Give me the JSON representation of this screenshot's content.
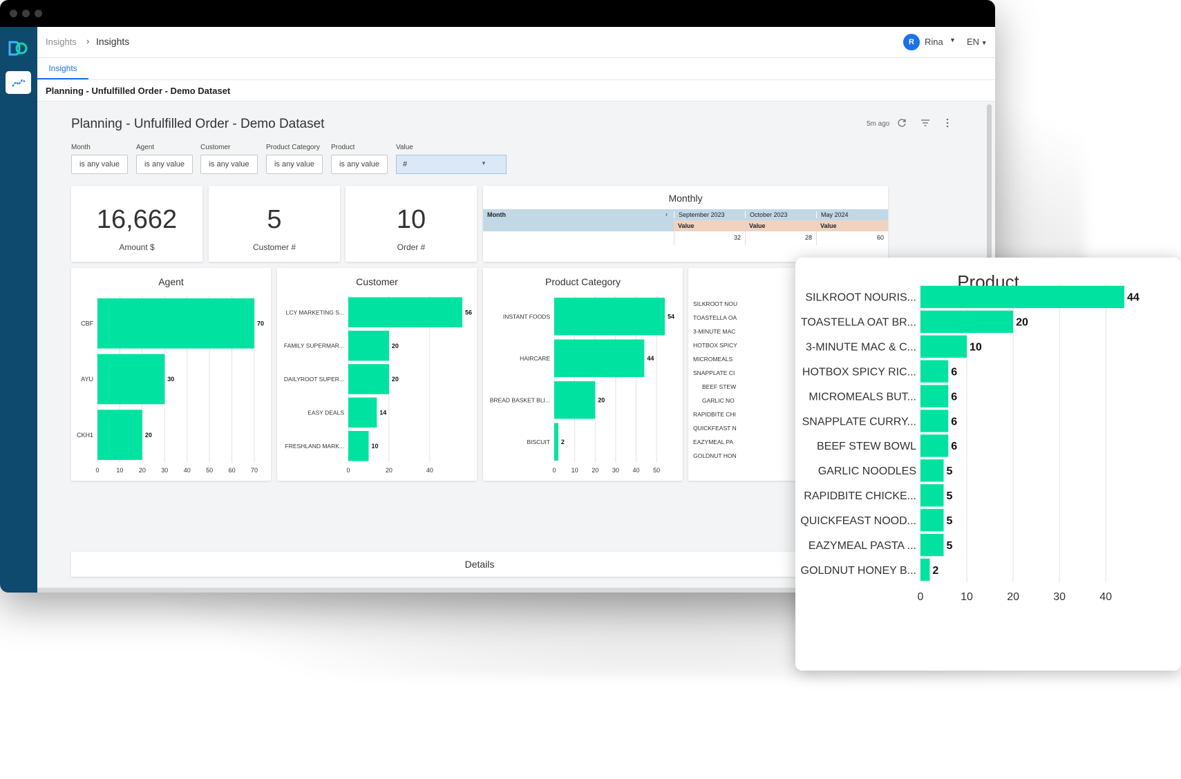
{
  "breadcrumb": {
    "root": "Insights",
    "separator": "›",
    "current": "Insights"
  },
  "user": {
    "initial": "R",
    "name": "Rina",
    "language": "EN"
  },
  "tabs": [
    {
      "label": "Insights"
    }
  ],
  "subtitle": "Planning - Unfulfilled Order - Demo Dataset",
  "dashboard": {
    "title": "Planning - Unfulfilled Order - Demo Dataset",
    "updated": "5m ago"
  },
  "filters": [
    {
      "label": "Month",
      "value": "is any value"
    },
    {
      "label": "Agent",
      "value": "is any value"
    },
    {
      "label": "Customer",
      "value": "is any value"
    },
    {
      "label": "Product Category",
      "value": "is any value"
    },
    {
      "label": "Product",
      "value": "is any value"
    }
  ],
  "value_filter": {
    "label": "Value",
    "value": "#"
  },
  "kpis": [
    {
      "value": "16,662",
      "label": "Amount $"
    },
    {
      "value": "5",
      "label": "Customer #"
    },
    {
      "value": "10",
      "label": "Order #"
    }
  ],
  "monthly": {
    "title": "Monthly",
    "row_header": "Month",
    "columns": [
      "September 2023",
      "October 2023",
      "May 2024"
    ],
    "measure": "Value",
    "values": [
      "32",
      "28",
      "60"
    ]
  },
  "details_label": "Details",
  "chart_data": [
    {
      "type": "bar",
      "orientation": "horizontal",
      "title": "Agent",
      "categories": [
        "CBF",
        "AYU",
        "CKH1"
      ],
      "values": [
        70,
        30,
        20
      ],
      "xlim": [
        0,
        70
      ],
      "ticks": [
        0,
        10,
        20,
        30,
        40,
        50,
        60,
        70
      ],
      "color": "#00e3a0"
    },
    {
      "type": "bar",
      "orientation": "horizontal",
      "title": "Customer",
      "categories": [
        "LCY MARKETING S...",
        "FAMILY SUPERMAR...",
        "DAILYROOT SUPER...",
        "EASY DEALS",
        "FRESHLAND MARK..."
      ],
      "values": [
        56,
        20,
        20,
        14,
        10
      ],
      "xlim": [
        0,
        56
      ],
      "ticks": [
        0,
        20,
        40
      ],
      "color": "#00e3a0"
    },
    {
      "type": "bar",
      "orientation": "horizontal",
      "title": "Product Category",
      "categories": [
        "INSTANT FOODS",
        "HAIRCARE",
        "BREAD BASKET BLI...",
        "BISCUIT"
      ],
      "values": [
        54,
        44,
        20,
        2
      ],
      "xlim": [
        0,
        54
      ],
      "ticks": [
        0,
        10,
        20,
        30,
        40,
        50
      ],
      "color": "#00e3a0"
    },
    {
      "type": "bar",
      "orientation": "horizontal",
      "title": "Product",
      "categories": [
        "SILKROOT NOURIS...",
        "TOASTELLA OAT BR...",
        "3-MINUTE MAC & C...",
        "HOTBOX SPICY RIC...",
        "MICROMEALS BUT...",
        "SNAPPLATE CURRY...",
        "BEEF STEW BOWL",
        "GARLIC NOODLES",
        "RAPIDBITE CHICKE...",
        "QUICKFEAST NOOD...",
        "EAZYMEAL PASTA ...",
        "GOLDNUT HONEY B..."
      ],
      "values": [
        44,
        20,
        10,
        6,
        6,
        6,
        6,
        5,
        5,
        5,
        5,
        2
      ],
      "xlim": [
        0,
        44
      ],
      "ticks": [
        0,
        10,
        20,
        30,
        40
      ],
      "color": "#00e3a0"
    }
  ],
  "product_truncated_labels": [
    "SILKROOT NOU",
    "TOASTELLA OA",
    "3-MINUTE MAC",
    "HOTBOX SPICY",
    "MICROMEALS",
    "SNAPPLATE CI",
    "BEEF STEW",
    "GARLIC NO",
    "RAPIDBITE CHI",
    "QUICKFEAST N",
    "EAZYMEAL PA",
    "GOLDNUT HON"
  ]
}
